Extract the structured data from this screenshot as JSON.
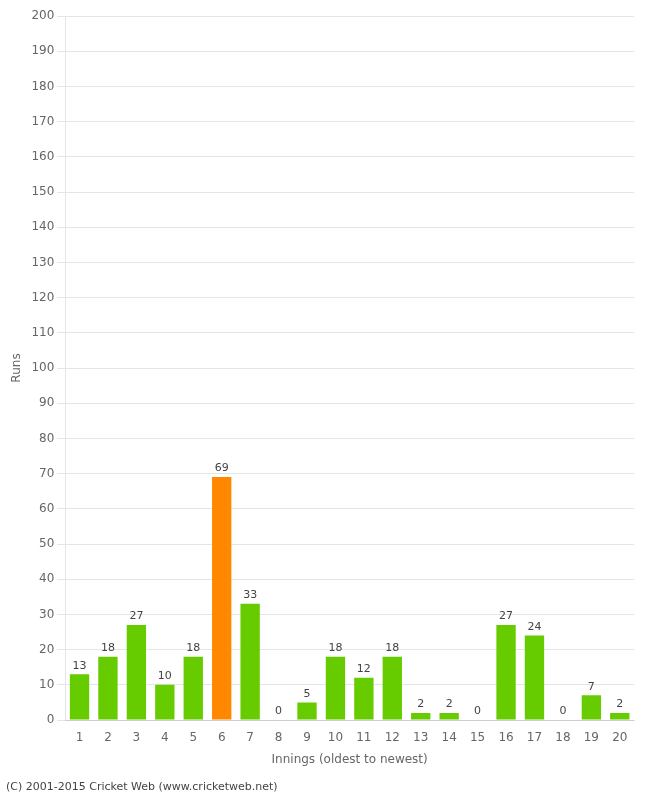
{
  "chart_data": {
    "type": "bar",
    "categories": [
      1,
      2,
      3,
      4,
      5,
      6,
      7,
      8,
      9,
      10,
      11,
      12,
      13,
      14,
      15,
      16,
      17,
      18,
      19,
      20
    ],
    "values": [
      13,
      18,
      27,
      10,
      18,
      69,
      33,
      0,
      5,
      18,
      12,
      18,
      2,
      2,
      0,
      27,
      24,
      0,
      7,
      2
    ],
    "colors": [
      "#66cc00",
      "#66cc00",
      "#66cc00",
      "#66cc00",
      "#66cc00",
      "#ff8800",
      "#66cc00",
      "#66cc00",
      "#66cc00",
      "#66cc00",
      "#66cc00",
      "#66cc00",
      "#66cc00",
      "#66cc00",
      "#66cc00",
      "#66cc00",
      "#66cc00",
      "#66cc00",
      "#66cc00",
      "#66cc00"
    ],
    "xlabel": "Innings (oldest to newest)",
    "ylabel": "Runs",
    "ylim": [
      0,
      200
    ],
    "yticks": [
      0,
      10,
      20,
      30,
      40,
      50,
      60,
      70,
      80,
      90,
      100,
      110,
      120,
      130,
      140,
      150,
      160,
      170,
      180,
      190,
      200
    ],
    "grid": true,
    "data_labels": true,
    "annotations": [
      "(C) 2001-2015 Cricket Web (www.cricketweb.net)"
    ]
  }
}
